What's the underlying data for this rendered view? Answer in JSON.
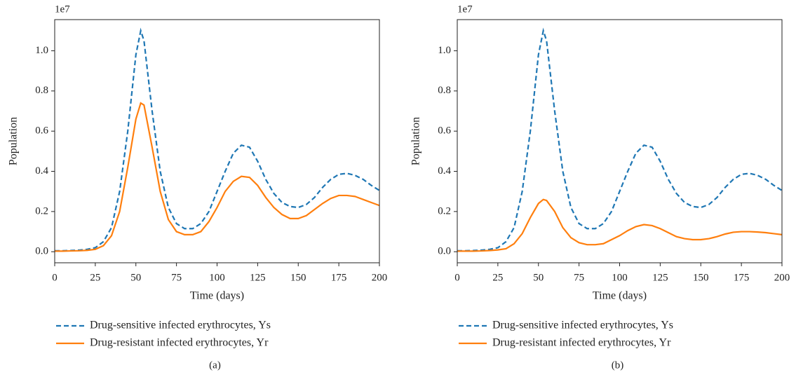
{
  "chart_data": [
    {
      "type": "line",
      "caption": "(a)",
      "y_offset_label": "1e7",
      "xlabel": "Time (days)",
      "ylabel": "Population",
      "x": [
        0,
        5,
        10,
        15,
        20,
        25,
        30,
        35,
        40,
        45,
        50,
        53,
        55,
        60,
        65,
        70,
        75,
        80,
        85,
        90,
        95,
        100,
        105,
        110,
        115,
        120,
        125,
        130,
        135,
        140,
        145,
        150,
        155,
        160,
        165,
        170,
        175,
        180,
        185,
        190,
        195,
        200
      ],
      "series": [
        {
          "name": "Drug-sensitive infected erythrocytes, Ys",
          "color": "#1f77b4",
          "dash": true,
          "values": [
            0.005,
            0.005,
            0.006,
            0.008,
            0.012,
            0.02,
            0.05,
            0.12,
            0.3,
            0.6,
            0.98,
            1.1,
            1.05,
            0.7,
            0.4,
            0.22,
            0.14,
            0.115,
            0.115,
            0.14,
            0.2,
            0.3,
            0.4,
            0.49,
            0.53,
            0.52,
            0.45,
            0.36,
            0.29,
            0.245,
            0.225,
            0.22,
            0.235,
            0.27,
            0.32,
            0.36,
            0.385,
            0.39,
            0.38,
            0.36,
            0.33,
            0.305
          ]
        },
        {
          "name": "Drug-resistant infected erythrocytes, Yr",
          "color": "#ff7f0e",
          "dash": false,
          "values": [
            0.003,
            0.003,
            0.004,
            0.005,
            0.007,
            0.012,
            0.03,
            0.08,
            0.2,
            0.42,
            0.66,
            0.74,
            0.73,
            0.52,
            0.3,
            0.16,
            0.1,
            0.085,
            0.085,
            0.1,
            0.15,
            0.22,
            0.3,
            0.35,
            0.375,
            0.37,
            0.33,
            0.27,
            0.22,
            0.185,
            0.165,
            0.165,
            0.18,
            0.21,
            0.24,
            0.265,
            0.28,
            0.28,
            0.275,
            0.26,
            0.245,
            0.23
          ]
        }
      ],
      "xlim": [
        0,
        200
      ],
      "xticks": [
        0,
        25,
        50,
        75,
        100,
        125,
        150,
        175,
        200
      ],
      "ylim": [
        -0.055,
        1.155
      ],
      "yticks": [
        {
          "value": 0,
          "label": "0.0"
        },
        0.2,
        0.4,
        0.6,
        0.8,
        {
          "value": 1,
          "label": "1.0"
        }
      ]
    },
    {
      "type": "line",
      "caption": "(b)",
      "y_offset_label": "1e7",
      "xlabel": "Time (days)",
      "ylabel": "Population",
      "x": [
        0,
        5,
        10,
        15,
        20,
        25,
        30,
        35,
        40,
        45,
        50,
        53,
        55,
        60,
        65,
        70,
        75,
        80,
        85,
        90,
        95,
        100,
        105,
        110,
        115,
        120,
        125,
        130,
        135,
        140,
        145,
        150,
        155,
        160,
        165,
        170,
        175,
        180,
        185,
        190,
        195,
        200
      ],
      "series": [
        {
          "name": "Drug-sensitive infected erythrocytes, Ys",
          "color": "#1f77b4",
          "dash": true,
          "values": [
            0.005,
            0.005,
            0.006,
            0.008,
            0.012,
            0.02,
            0.05,
            0.12,
            0.3,
            0.6,
            0.98,
            1.1,
            1.05,
            0.7,
            0.4,
            0.22,
            0.14,
            0.115,
            0.115,
            0.14,
            0.2,
            0.3,
            0.4,
            0.49,
            0.53,
            0.52,
            0.45,
            0.36,
            0.29,
            0.245,
            0.225,
            0.22,
            0.235,
            0.27,
            0.32,
            0.36,
            0.385,
            0.39,
            0.38,
            0.36,
            0.33,
            0.305
          ]
        },
        {
          "name": "Drug-resistant infected erythrocytes, Yr",
          "color": "#ff7f0e",
          "dash": false,
          "values": [
            0.003,
            0.003,
            0.003,
            0.004,
            0.006,
            0.009,
            0.015,
            0.04,
            0.09,
            0.17,
            0.24,
            0.26,
            0.255,
            0.2,
            0.12,
            0.07,
            0.045,
            0.035,
            0.035,
            0.04,
            0.06,
            0.08,
            0.105,
            0.125,
            0.135,
            0.13,
            0.115,
            0.095,
            0.075,
            0.065,
            0.06,
            0.06,
            0.065,
            0.075,
            0.088,
            0.097,
            0.1,
            0.1,
            0.098,
            0.095,
            0.09,
            0.085
          ]
        }
      ],
      "xlim": [
        0,
        200
      ],
      "xticks": [
        0,
        25,
        50,
        75,
        100,
        125,
        150,
        175,
        200
      ],
      "ylim": [
        -0.055,
        1.155
      ],
      "yticks": [
        {
          "value": 0,
          "label": "0.0"
        },
        0.2,
        0.4,
        0.6,
        0.8,
        {
          "value": 1,
          "label": "1.0"
        }
      ]
    }
  ]
}
